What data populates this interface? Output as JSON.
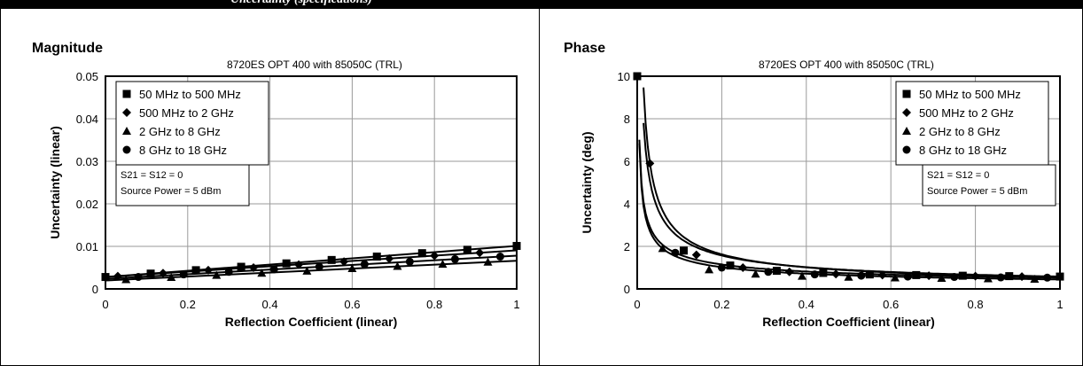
{
  "header": {
    "text": "Uncertainty (specifications)"
  },
  "chart_data": [
    {
      "type": "line",
      "panel_title": "Magnitude",
      "title": "8720ES OPT 400 with 85050C (TRL)",
      "xlabel": "Reflection Coefficient (linear)",
      "ylabel": "Uncertainty (linear)",
      "xlim": [
        0,
        1
      ],
      "ylim": [
        0,
        0.05
      ],
      "xticks": [
        0,
        0.2,
        0.4,
        0.6,
        0.8,
        1
      ],
      "xtick_labels": [
        "0",
        "0.2",
        "0.4",
        "0.6",
        "0.8",
        "1"
      ],
      "yticks": [
        0,
        0.01,
        0.02,
        0.03,
        0.04,
        0.05
      ],
      "ytick_labels": [
        "0",
        "0.01",
        "0.02",
        "0.03",
        "0.04",
        "0.05"
      ],
      "grid": true,
      "legend_placement": "top-left",
      "annotation": [
        "S21 = S12 = 0",
        "Source Power = 5 dBm"
      ],
      "series": [
        {
          "name": "50 MHz to 500 MHz",
          "marker": "square",
          "x": [
            0,
            0.11,
            0.22,
            0.33,
            0.44,
            0.55,
            0.66,
            0.77,
            0.88,
            1.0
          ],
          "y": [
            0.0028,
            0.0036,
            0.0044,
            0.0052,
            0.006,
            0.0068,
            0.0076,
            0.0084,
            0.0092,
            0.0101
          ]
        },
        {
          "name": "500 MHz to 2 GHz",
          "marker": "diamond",
          "x": [
            0.03,
            0.14,
            0.25,
            0.36,
            0.47,
            0.58,
            0.69,
            0.8,
            0.91
          ],
          "y": [
            0.003,
            0.0037,
            0.0044,
            0.005,
            0.0057,
            0.0064,
            0.0071,
            0.0078,
            0.0085
          ]
        },
        {
          "name": "2 GHz to 8 GHz",
          "marker": "triangle",
          "x": [
            0.05,
            0.16,
            0.27,
            0.38,
            0.49,
            0.6,
            0.71,
            0.82,
            0.93
          ],
          "y": [
            0.0022,
            0.0027,
            0.0032,
            0.0037,
            0.0042,
            0.0048,
            0.0053,
            0.0058,
            0.0063
          ]
        },
        {
          "name": "8 GHz to 18 GHz",
          "marker": "circle",
          "x": [
            0.08,
            0.19,
            0.3,
            0.41,
            0.52,
            0.63,
            0.74,
            0.85,
            0.96
          ],
          "y": [
            0.0028,
            0.0034,
            0.004,
            0.0046,
            0.0052,
            0.0058,
            0.0064,
            0.007,
            0.0076
          ]
        }
      ]
    },
    {
      "type": "line",
      "panel_title": "Phase",
      "title": "8720ES OPT 400 with 85050C (TRL)",
      "xlabel": "Reflection Coefficient (linear)",
      "ylabel": "Uncertainty (deg)",
      "xlim": [
        0,
        1
      ],
      "ylim": [
        0,
        10
      ],
      "xticks": [
        0,
        0.2,
        0.4,
        0.6,
        0.8,
        1
      ],
      "xtick_labels": [
        "0",
        "0.2",
        "0.4",
        "0.6",
        "0.8",
        "1"
      ],
      "yticks": [
        0,
        2,
        4,
        6,
        8,
        10
      ],
      "ytick_labels": [
        "0",
        "2",
        "4",
        "6",
        "8",
        "10"
      ],
      "grid": true,
      "legend_placement": "top-right",
      "annotation": [
        "S21 = S12 = 0",
        "Source Power = 5 dBm"
      ],
      "series": [
        {
          "name": "50 MHz to 500 MHz",
          "marker": "square",
          "x": [
            0.0,
            0.11,
            0.22,
            0.33,
            0.44,
            0.55,
            0.66,
            0.77,
            0.88,
            1.0
          ],
          "y": [
            10.0,
            1.8,
            1.1,
            0.85,
            0.75,
            0.68,
            0.65,
            0.62,
            0.6,
            0.58
          ]
        },
        {
          "name": "500 MHz to 2 GHz",
          "marker": "diamond",
          "x": [
            0.03,
            0.14,
            0.25,
            0.36,
            0.47,
            0.58,
            0.69,
            0.8,
            0.91
          ],
          "y": [
            5.9,
            1.6,
            1.0,
            0.8,
            0.7,
            0.65,
            0.62,
            0.6,
            0.58
          ]
        },
        {
          "name": "2 GHz to 8 GHz",
          "marker": "triangle",
          "x": [
            0.06,
            0.17,
            0.28,
            0.39,
            0.5,
            0.61,
            0.72,
            0.83,
            0.94
          ],
          "y": [
            1.9,
            0.9,
            0.7,
            0.6,
            0.55,
            0.52,
            0.5,
            0.48,
            0.46
          ]
        },
        {
          "name": "8 GHz to 18 GHz",
          "marker": "circle",
          "x": [
            0.09,
            0.2,
            0.31,
            0.42,
            0.53,
            0.64,
            0.75,
            0.86,
            0.97
          ],
          "y": [
            1.7,
            1.0,
            0.8,
            0.68,
            0.62,
            0.58,
            0.56,
            0.54,
            0.53
          ]
        }
      ]
    }
  ]
}
